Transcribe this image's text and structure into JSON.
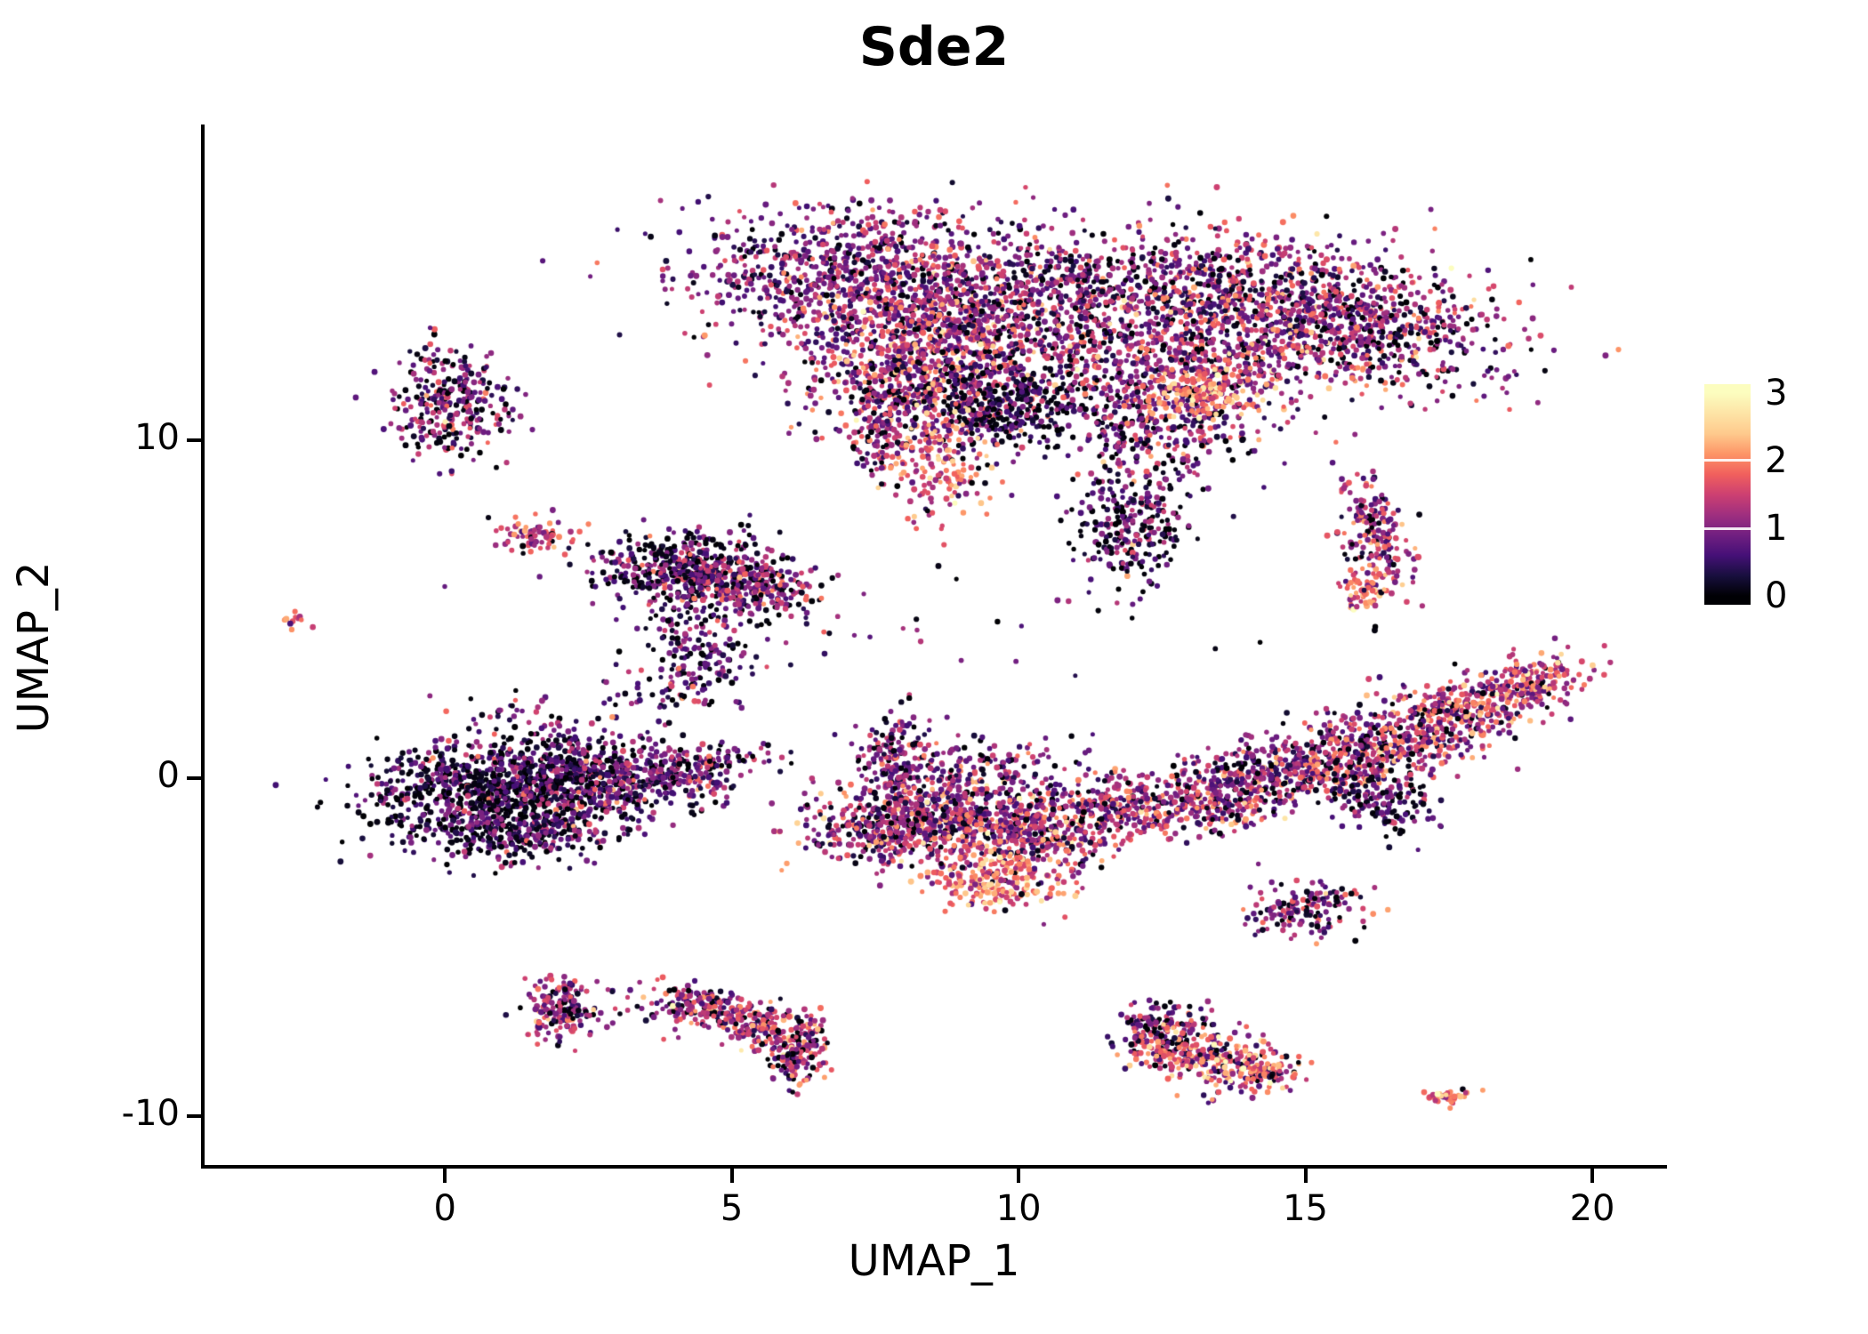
{
  "figure": {
    "background": "#ffffff",
    "axis_color": "#000000",
    "text_color": "#000000"
  },
  "chart_data": {
    "type": "scatter",
    "title": "Sde2",
    "xlabel": "UMAP_1",
    "ylabel": "UMAP_2",
    "x_ticks": [
      0,
      5,
      10,
      15,
      20
    ],
    "y_ticks": [
      -10,
      0,
      10
    ],
    "xlim": [
      -4.19,
      21.24
    ],
    "ylim": [
      -11.45,
      19.34
    ],
    "grid": false,
    "legend": {
      "position": "right",
      "ticks": [
        3,
        2,
        1,
        0
      ],
      "vmin": 0,
      "vmax": 3
    },
    "colormap": {
      "name": "magma",
      "stops": [
        {
          "t": 0.0,
          "c": "#000004"
        },
        {
          "t": 0.1,
          "c": "#180f3e"
        },
        {
          "t": 0.2,
          "c": "#451077"
        },
        {
          "t": 0.3,
          "c": "#721f81"
        },
        {
          "t": 0.4,
          "c": "#9f2f7f"
        },
        {
          "t": 0.5,
          "c": "#cd4071"
        },
        {
          "t": 0.6,
          "c": "#f1605d"
        },
        {
          "t": 0.7,
          "c": "#fd9567"
        },
        {
          "t": 0.8,
          "c": "#feca8d"
        },
        {
          "t": 0.9,
          "c": "#fde4a6"
        },
        {
          "t": 1.0,
          "c": "#fcfdbf"
        }
      ]
    },
    "seed": 42,
    "point_radius_px": [
      2.5,
      3.5
    ],
    "cluster_fields": [
      "cx",
      "cy",
      "sx",
      "sy",
      "rot_deg",
      "n",
      "value_mean",
      "value_sd",
      "zero_frac"
    ],
    "clusters": [
      [
        7.3,
        14.8,
        1.6,
        1.05,
        -5,
        900,
        0.95,
        0.5,
        0.06
      ],
      [
        9.2,
        13.4,
        1.4,
        1.2,
        0,
        800,
        1.15,
        0.6,
        0.06
      ],
      [
        8.3,
        11.9,
        1.0,
        0.9,
        0,
        500,
        1.3,
        0.65,
        0.08
      ],
      [
        9.8,
        11.0,
        0.8,
        0.65,
        0,
        350,
        0.55,
        0.45,
        0.3
      ],
      [
        8.6,
        9.4,
        0.45,
        0.85,
        5,
        190,
        1.8,
        0.55,
        0.04
      ],
      [
        7.55,
        10.3,
        0.22,
        0.8,
        0,
        120,
        1.0,
        0.5,
        0.12
      ],
      [
        11.0,
        13.6,
        1.3,
        1.2,
        0,
        300,
        0.85,
        0.55,
        0.15
      ],
      [
        14.2,
        14.2,
        1.6,
        1.0,
        -10,
        800,
        1.05,
        0.6,
        0.08
      ],
      [
        16.2,
        13.2,
        1.25,
        0.85,
        -20,
        500,
        1.0,
        0.6,
        0.1
      ],
      [
        13.3,
        12.3,
        1.0,
        0.8,
        0,
        400,
        1.2,
        0.65,
        0.08
      ],
      [
        12.4,
        10.5,
        0.9,
        0.85,
        0,
        350,
        0.9,
        0.6,
        0.15
      ],
      [
        11.9,
        7.5,
        0.5,
        0.85,
        0,
        260,
        0.7,
        0.6,
        0.28
      ],
      [
        13.2,
        11.4,
        0.45,
        0.4,
        0,
        120,
        2.0,
        0.4,
        0.02
      ],
      [
        11.6,
        14.8,
        1.0,
        0.8,
        0,
        150,
        0.9,
        0.5,
        0.18
      ],
      [
        0.1,
        11.1,
        0.55,
        0.8,
        0,
        300,
        0.9,
        0.55,
        0.15
      ],
      [
        1.6,
        7.2,
        0.35,
        0.28,
        0,
        70,
        1.5,
        0.55,
        0.08
      ],
      [
        -2.6,
        4.7,
        0.12,
        0.1,
        0,
        12,
        1.6,
        0.5,
        0.05
      ],
      [
        4.2,
        6.2,
        0.8,
        0.55,
        0,
        450,
        0.7,
        0.55,
        0.25
      ],
      [
        5.3,
        5.6,
        0.6,
        0.45,
        -20,
        260,
        0.95,
        0.55,
        0.12
      ],
      [
        4.4,
        4.0,
        0.55,
        0.8,
        0,
        150,
        0.85,
        0.55,
        0.15
      ],
      [
        0.9,
        -0.3,
        1.1,
        0.75,
        8,
        900,
        0.6,
        0.5,
        0.28
      ],
      [
        2.6,
        -0.1,
        0.9,
        0.6,
        0,
        450,
        0.8,
        0.55,
        0.15
      ],
      [
        4.2,
        0.3,
        0.7,
        0.35,
        12,
        200,
        0.9,
        0.55,
        0.1
      ],
      [
        1.2,
        -1.7,
        0.9,
        0.4,
        5,
        250,
        0.7,
        0.5,
        0.2
      ],
      [
        7.85,
        0.6,
        0.25,
        0.75,
        0,
        150,
        0.95,
        0.5,
        0.1
      ],
      [
        7.6,
        -1.4,
        0.7,
        0.6,
        0,
        350,
        1.15,
        0.6,
        0.08
      ],
      [
        9.0,
        -1.2,
        0.8,
        0.7,
        0,
        400,
        1.2,
        0.6,
        0.07
      ],
      [
        10.3,
        -1.6,
        0.8,
        0.6,
        0,
        350,
        1.3,
        0.6,
        0.07
      ],
      [
        9.6,
        -3.0,
        0.55,
        0.45,
        -10,
        220,
        1.9,
        0.5,
        0.03
      ],
      [
        11.5,
        -0.9,
        0.6,
        0.5,
        0,
        200,
        1.15,
        0.55,
        0.1
      ],
      [
        9.3,
        0.4,
        1.1,
        0.5,
        0,
        150,
        1.0,
        0.5,
        0.15
      ],
      [
        13.3,
        -0.6,
        0.8,
        0.55,
        15,
        300,
        1.2,
        0.6,
        0.08
      ],
      [
        14.8,
        0.2,
        0.9,
        0.5,
        18,
        350,
        1.1,
        0.6,
        0.1
      ],
      [
        16.2,
        0.9,
        0.9,
        0.55,
        20,
        350,
        1.2,
        0.6,
        0.08
      ],
      [
        17.6,
        1.9,
        0.8,
        0.5,
        25,
        300,
        1.3,
        0.6,
        0.07
      ],
      [
        18.9,
        2.8,
        0.6,
        0.4,
        25,
        200,
        1.45,
        0.55,
        0.05
      ],
      [
        16.4,
        -0.8,
        0.45,
        0.5,
        0,
        130,
        0.75,
        0.5,
        0.2
      ],
      [
        16.25,
        7.2,
        0.28,
        0.95,
        8,
        190,
        1.25,
        0.6,
        0.08
      ],
      [
        16.0,
        5.5,
        0.2,
        0.3,
        0,
        60,
        1.8,
        0.5,
        0.03
      ],
      [
        15.0,
        -3.9,
        0.5,
        0.35,
        20,
        150,
        1.1,
        0.55,
        0.12
      ],
      [
        2.05,
        -6.9,
        0.3,
        0.45,
        0,
        170,
        1.05,
        0.6,
        0.1
      ],
      [
        4.4,
        -6.8,
        0.55,
        0.33,
        -15,
        180,
        1.2,
        0.6,
        0.1
      ],
      [
        5.5,
        -7.3,
        0.5,
        0.35,
        -35,
        160,
        1.3,
        0.6,
        0.08
      ],
      [
        6.15,
        -8.2,
        0.25,
        0.5,
        -8,
        140,
        1.1,
        0.6,
        0.12
      ],
      [
        12.5,
        -7.5,
        0.45,
        0.4,
        0,
        180,
        1.0,
        0.6,
        0.12
      ],
      [
        13.3,
        -8.3,
        0.6,
        0.45,
        -20,
        250,
        1.5,
        0.6,
        0.05
      ],
      [
        14.2,
        -8.6,
        0.35,
        0.3,
        0,
        100,
        1.6,
        0.55,
        0.05
      ],
      [
        17.55,
        -9.4,
        0.22,
        0.12,
        0,
        40,
        1.9,
        0.45,
        0.02
      ],
      [
        4.0,
        2.6,
        0.5,
        0.6,
        0,
        60,
        0.9,
        0.5,
        0.15
      ],
      [
        7.5,
        4.6,
        3.0,
        0.8,
        0,
        30,
        0.9,
        0.5,
        0.15
      ],
      [
        1.5,
        1.6,
        0.8,
        0.5,
        0,
        50,
        0.8,
        0.5,
        0.2
      ]
    ]
  }
}
